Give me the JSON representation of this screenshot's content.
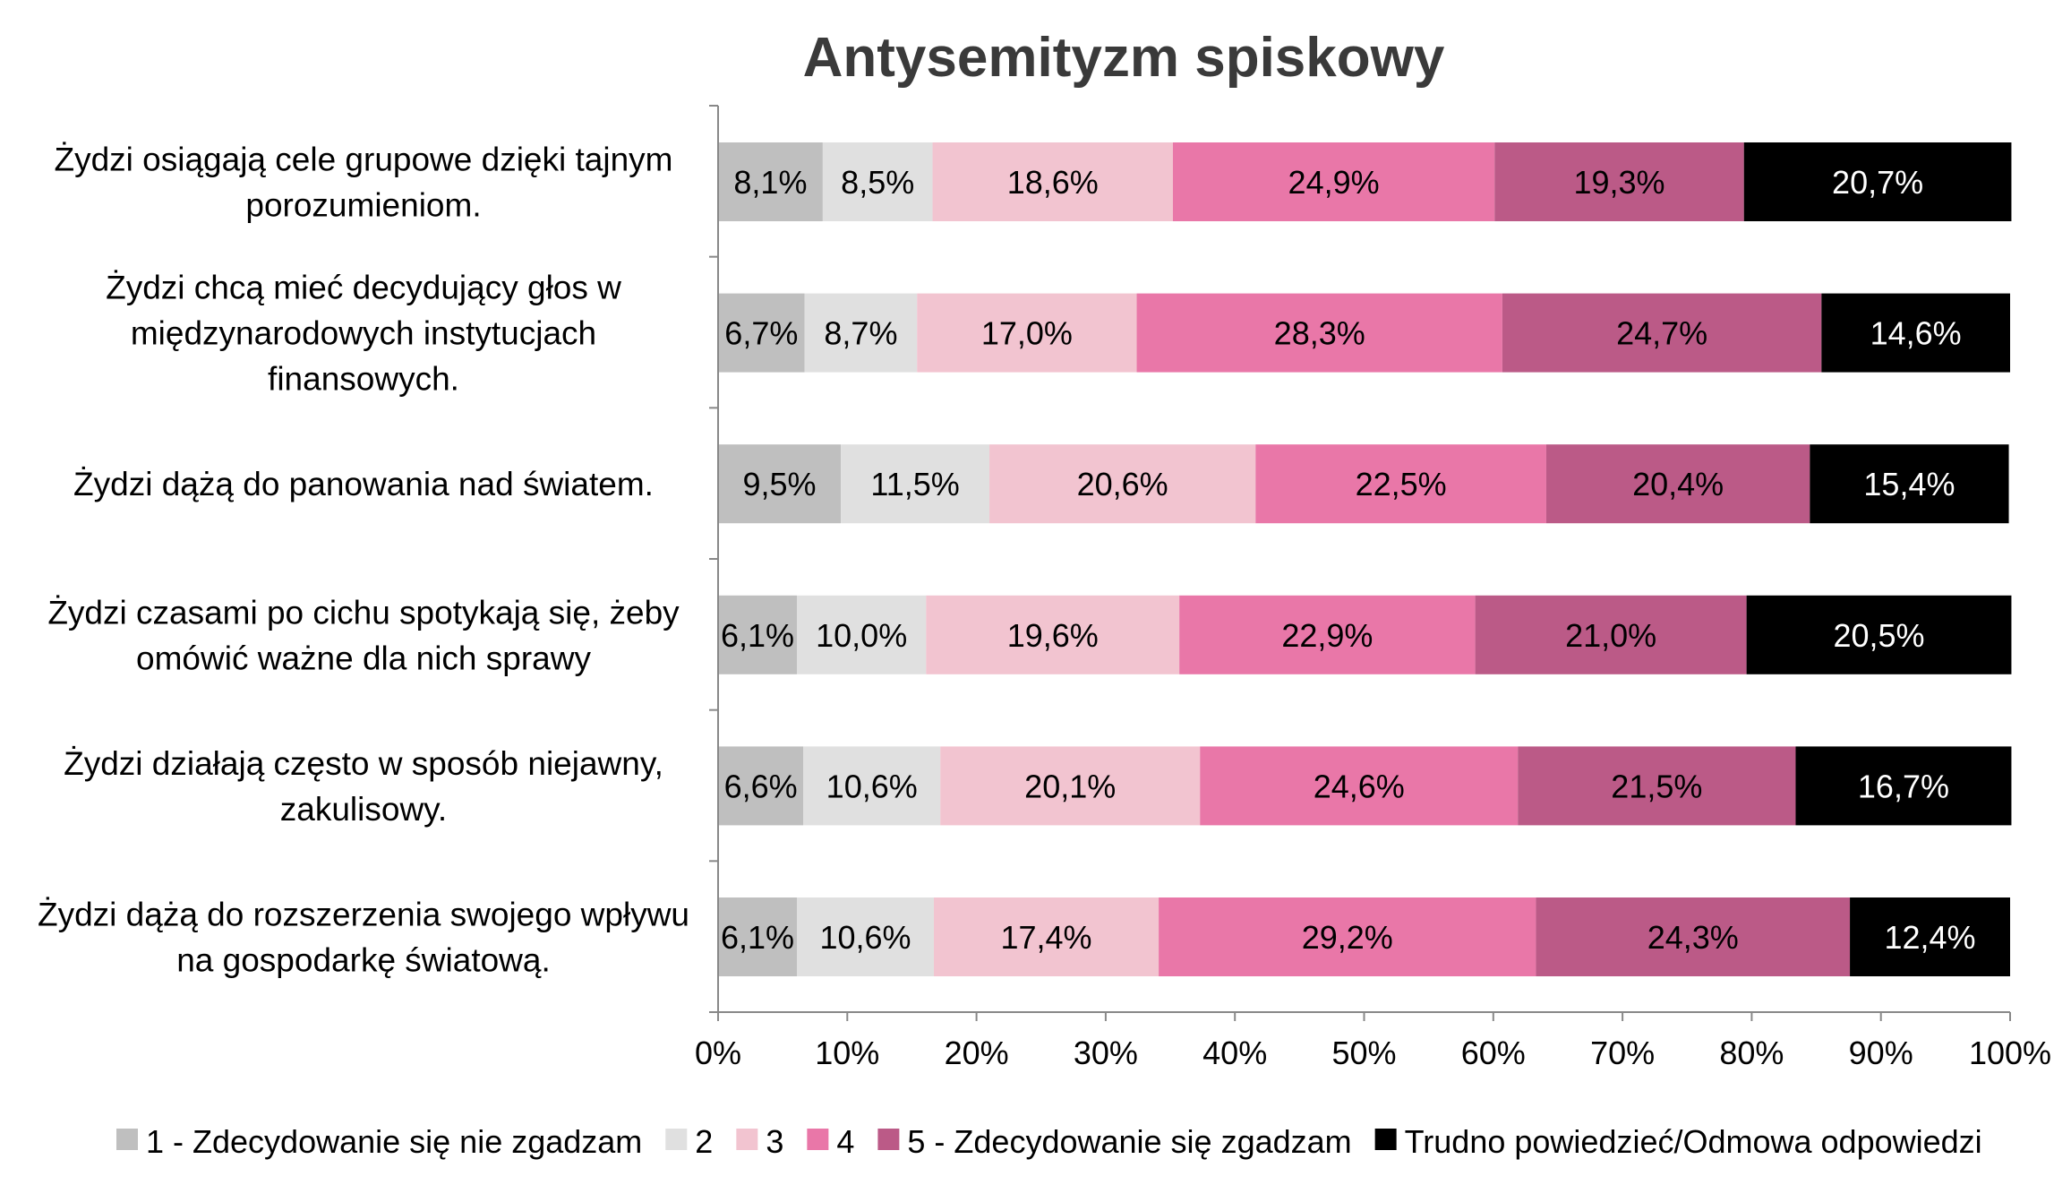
{
  "chart_data": {
    "type": "bar",
    "orientation": "horizontal",
    "stacked": "percent",
    "title": "Antysemityzm spiskowy",
    "categories": [
      [
        "Żydzi osiągają cele grupowe dzięki tajnym",
        "porozumieniom."
      ],
      [
        "Żydzi chcą mieć decydujący głos w",
        "międzynarodowych instytucjach",
        "finansowych."
      ],
      [
        "Żydzi dążą do panowania nad światem."
      ],
      [
        "Żydzi czasami po cichu spotykają się, żeby",
        "omówić ważne dla nich sprawy"
      ],
      [
        "Żydzi działają często w sposób niejawny,",
        "zakulisowy."
      ],
      [
        "Żydzi dążą do rozszerzenia swojego wpływu",
        "na gospodarkę światową."
      ]
    ],
    "series": [
      {
        "name": "1 - Zdecydowanie się nie zgadzam",
        "color": "#bfbfbf",
        "label_color": "#000000",
        "values": [
          8.1,
          6.7,
          9.5,
          6.1,
          6.6,
          6.1
        ],
        "labels": [
          "8,1%",
          "6,7%",
          "9,5%",
          "6,1%",
          "6,6%",
          "6,1%"
        ]
      },
      {
        "name": "2",
        "color": "#e0e0e0",
        "label_color": "#000000",
        "values": [
          8.5,
          8.7,
          11.5,
          10.0,
          10.6,
          10.6
        ],
        "labels": [
          "8,5%",
          "8,7%",
          "11,5%",
          "10,0%",
          "10,6%",
          "10,6%"
        ]
      },
      {
        "name": "3",
        "color": "#f2c4d0",
        "label_color": "#000000",
        "values": [
          18.6,
          17.0,
          20.6,
          19.6,
          20.1,
          17.4
        ],
        "labels": [
          "18,6%",
          "17,0%",
          "20,6%",
          "19,6%",
          "20,1%",
          "17,4%"
        ]
      },
      {
        "name": "4",
        "color": "#e977a8",
        "label_color": "#000000",
        "values": [
          24.9,
          28.3,
          22.5,
          22.9,
          24.6,
          29.2
        ],
        "labels": [
          "24,9%",
          "28,3%",
          "22,5%",
          "22,9%",
          "24,6%",
          "29,2%"
        ]
      },
      {
        "name": "5 -  Zdecydowanie się zgadzam",
        "color": "#bb5a87",
        "label_color": "#000000",
        "values": [
          19.3,
          24.7,
          20.4,
          21.0,
          21.5,
          24.3
        ],
        "labels": [
          "19,3%",
          "24,7%",
          "20,4%",
          "21,0%",
          "21,5%",
          "24,3%"
        ]
      },
      {
        "name": "Trudno powiedzieć/Odmowa odpowiedzi",
        "color": "#000000",
        "label_color": "#ffffff",
        "values": [
          20.7,
          14.6,
          15.4,
          20.5,
          16.7,
          12.4
        ],
        "labels": [
          "20,7%",
          "14,6%",
          "15,4%",
          "20,5%",
          "16,7%",
          "12,4%"
        ]
      }
    ],
    "xlim": [
      0,
      100
    ],
    "xticks": [
      "0%",
      "10%",
      "20%",
      "30%",
      "40%",
      "50%",
      "60%",
      "70%",
      "80%",
      "90%",
      "100%"
    ],
    "grid": false,
    "legend_position": "bottom"
  }
}
